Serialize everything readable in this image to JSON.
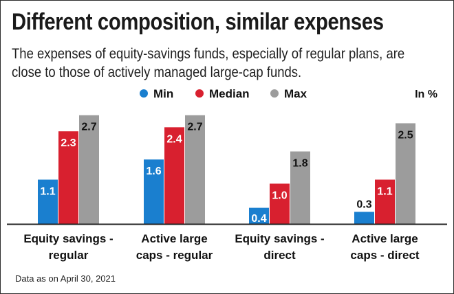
{
  "title": "Different composition, similar expenses",
  "subtitle": "The expenses of equity-savings funds, especially of regular plans, are close to those of actively managed large-cap funds.",
  "unit_label": "In %",
  "footnote": "Data as on April 30, 2021",
  "colors": {
    "min": "#1a7fcf",
    "median": "#d8202f",
    "max": "#9c9c9c",
    "axis": "#222222",
    "text_on_bar": "#ffffff",
    "text_dark": "#111111"
  },
  "chart_data": {
    "type": "bar",
    "title": "",
    "xlabel": "",
    "ylabel": "",
    "ylim": [
      0,
      2.9
    ],
    "grid": false,
    "legend_position": "top-center",
    "categories": [
      [
        "Equity savings -",
        "regular"
      ],
      [
        "Active large",
        "caps - regular"
      ],
      [
        "Equity savings -",
        "direct"
      ],
      [
        "Active large",
        "caps - direct"
      ]
    ],
    "series": [
      {
        "name": "Min",
        "values": [
          1.1,
          1.6,
          0.4,
          0.3
        ]
      },
      {
        "name": "Median",
        "values": [
          2.3,
          2.4,
          1.0,
          1.1
        ]
      },
      {
        "name": "Max",
        "values": [
          2.7,
          2.7,
          1.8,
          2.5
        ]
      }
    ]
  }
}
